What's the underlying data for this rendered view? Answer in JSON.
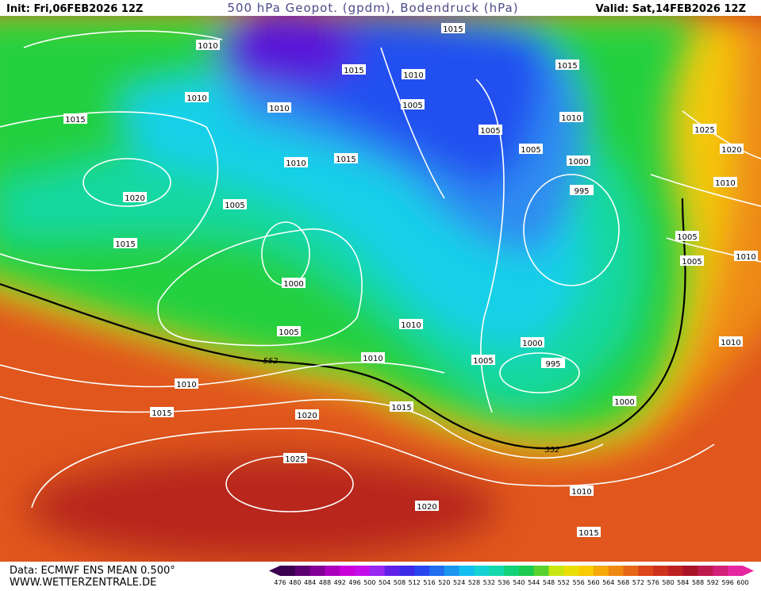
{
  "header": {
    "init": "Init: Fri,06FEB2026 12Z",
    "title": "500 hPa Geopot. (gpdm), Bodendruck (hPa)",
    "valid": "Valid: Sat,14FEB2026 12Z"
  },
  "footer": {
    "source": "Data: ECMWF ENS MEAN 0.500°",
    "website": "WWW.WETTERZENTRALE.DE"
  },
  "colorbar": {
    "labels": [
      476,
      480,
      484,
      488,
      492,
      496,
      500,
      504,
      508,
      512,
      516,
      520,
      524,
      528,
      532,
      536,
      540,
      544,
      548,
      552,
      556,
      560,
      564,
      568,
      572,
      576,
      580,
      584,
      588,
      592,
      596,
      600
    ]
  },
  "isobar_labels": [
    1010,
    1015,
    1015,
    1010,
    1010,
    1015,
    1010,
    1005,
    1015,
    1010,
    1005,
    1005,
    1025,
    1020,
    1010,
    1015,
    1000,
    995,
    1010,
    1020,
    1005,
    1015,
    1005,
    1005,
    1010,
    1000,
    1010,
    1005,
    1000,
    1010,
    1010,
    1005,
    995,
    1010,
    1000,
    1015,
    1015,
    1020,
    1025,
    1010,
    1020,
    1015
  ],
  "contour_labels": [
    552,
    552
  ]
}
